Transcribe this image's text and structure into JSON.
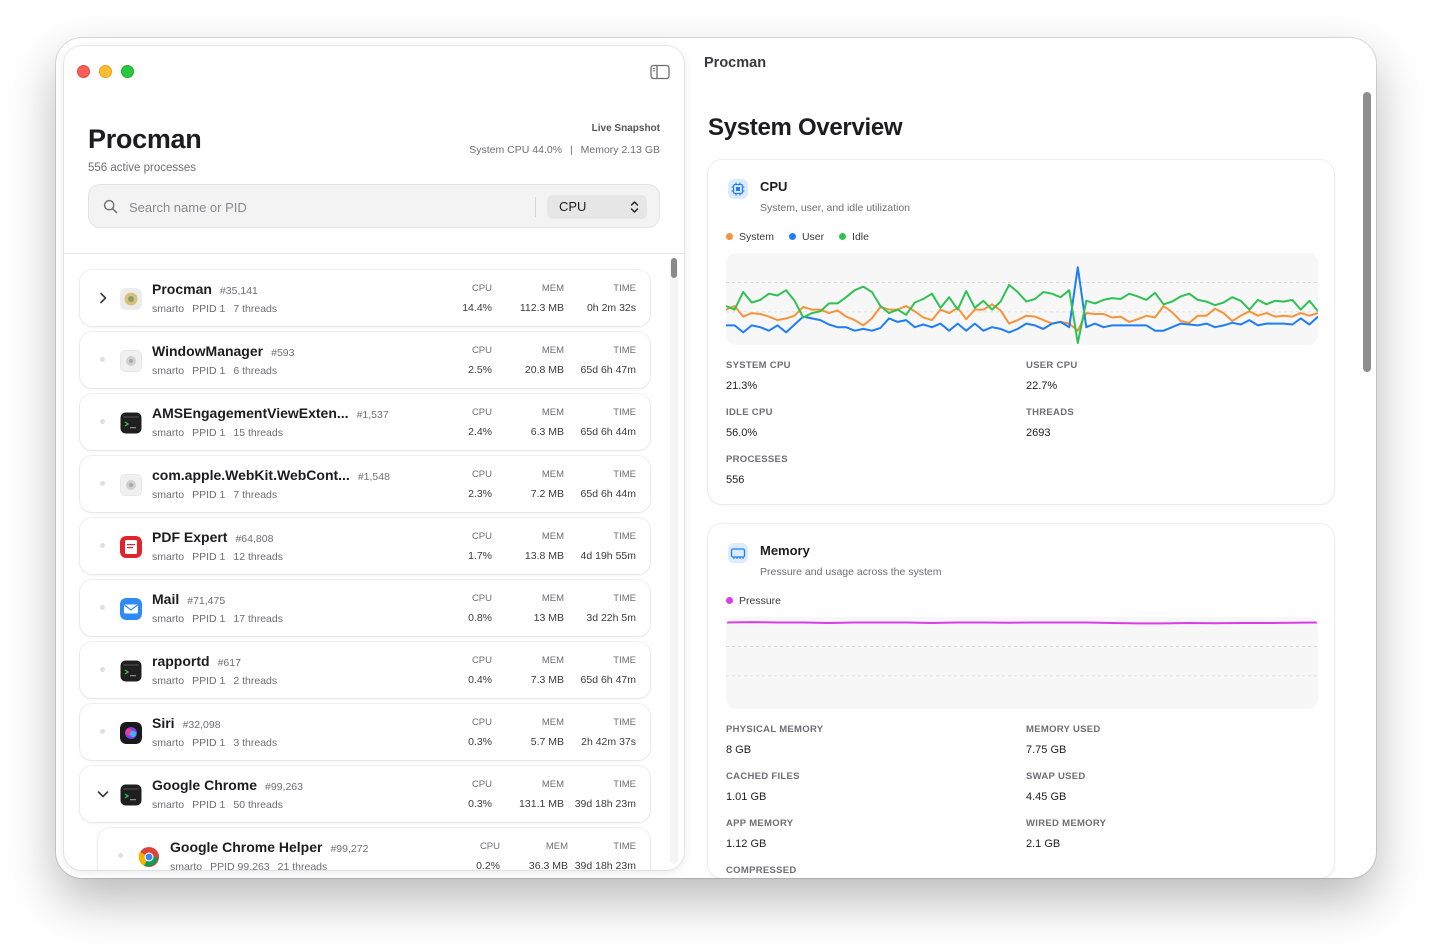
{
  "sidebar": {
    "app_title": "Procman",
    "active_count": "556 active processes",
    "snapshot_label": "Live Snapshot",
    "system_cpu": "System CPU 44.0%",
    "stat_separator": "|",
    "memory": "Memory 2.13 GB",
    "search_placeholder": "Search name or PID",
    "sort_value": "CPU",
    "column_labels": {
      "cpu": "CPU",
      "mem": "MEM",
      "time": "TIME"
    },
    "processes": [
      {
        "name": "Procman",
        "pid": "#35,141",
        "user": "smarto",
        "ppid": "PPID 1",
        "threads": "7 threads",
        "cpu": "14.4%",
        "mem": "112.3 MB",
        "time": "0h 2m 32s",
        "lead": "chevron-right",
        "icon": "procman"
      },
      {
        "name": "WindowManager",
        "pid": "#593",
        "user": "smarto",
        "ppid": "PPID 1",
        "threads": "6 threads",
        "cpu": "2.5%",
        "mem": "20.8 MB",
        "time": "65d 6h 47m",
        "lead": "dot",
        "icon": "generic"
      },
      {
        "name": "AMSEngagementViewExten...",
        "pid": "#1,537",
        "user": "smarto",
        "ppid": "PPID 1",
        "threads": "15 threads",
        "cpu": "2.4%",
        "mem": "6.3 MB",
        "time": "65d 6h 44m",
        "lead": "dot",
        "icon": "exec"
      },
      {
        "name": "com.apple.WebKit.WebCont...",
        "pid": "#1,548",
        "user": "smarto",
        "ppid": "PPID 1",
        "threads": "7 threads",
        "cpu": "2.3%",
        "mem": "7.2 MB",
        "time": "65d 6h 44m",
        "lead": "dot",
        "icon": "generic"
      },
      {
        "name": "PDF Expert",
        "pid": "#64,808",
        "user": "smarto",
        "ppid": "PPID 1",
        "threads": "12 threads",
        "cpu": "1.7%",
        "mem": "13.8 MB",
        "time": "4d 19h 55m",
        "lead": "dot",
        "icon": "pdf"
      },
      {
        "name": "Mail",
        "pid": "#71,475",
        "user": "smarto",
        "ppid": "PPID 1",
        "threads": "17 threads",
        "cpu": "0.8%",
        "mem": "13 MB",
        "time": "3d 22h 5m",
        "lead": "dot",
        "icon": "mail"
      },
      {
        "name": "rapportd",
        "pid": "#617",
        "user": "smarto",
        "ppid": "PPID 1",
        "threads": "2 threads",
        "cpu": "0.4%",
        "mem": "7.3 MB",
        "time": "65d 6h 47m",
        "lead": "dot",
        "icon": "exec"
      },
      {
        "name": "Siri",
        "pid": "#32,098",
        "user": "smarto",
        "ppid": "PPID 1",
        "threads": "3 threads",
        "cpu": "0.3%",
        "mem": "5.7 MB",
        "time": "2h 42m 37s",
        "lead": "dot",
        "icon": "siri"
      },
      {
        "name": "Google Chrome",
        "pid": "#99,263",
        "user": "smarto",
        "ppid": "PPID 1",
        "threads": "50 threads",
        "cpu": "0.3%",
        "mem": "131.1 MB",
        "time": "39d 18h 23m",
        "lead": "chevron-down",
        "icon": "exec"
      },
      {
        "name": "Google Chrome Helper",
        "pid": "#99,272",
        "user": "smarto",
        "ppid": "PPID 99,263",
        "threads": "21 threads",
        "cpu": "0.2%",
        "mem": "36.3 MB",
        "time": "39d 18h 23m",
        "lead": "dot",
        "icon": "chrome",
        "child": true
      }
    ]
  },
  "main": {
    "window_title": "Procman",
    "overview_title": "System Overview",
    "cpu_card": {
      "title": "CPU",
      "subtitle": "System, user, and idle utilization",
      "legend": [
        {
          "name": "System",
          "color": "#f5943a"
        },
        {
          "name": "User",
          "color": "#1f7ef5"
        },
        {
          "name": "Idle",
          "color": "#2fc253"
        }
      ],
      "stats": [
        {
          "label": "SYSTEM CPU",
          "value": "21.3%"
        },
        {
          "label": "USER CPU",
          "value": "22.7%"
        },
        {
          "label": "IDLE CPU",
          "value": "56.0%"
        },
        {
          "label": "THREADS",
          "value": "2693"
        },
        {
          "label": "PROCESSES",
          "value": "556"
        }
      ]
    },
    "memory_card": {
      "title": "Memory",
      "subtitle": "Pressure and usage across the system",
      "legend": [
        {
          "name": "Pressure",
          "color": "#d93ee6"
        }
      ],
      "stats": [
        {
          "label": "PHYSICAL MEMORY",
          "value": "8 GB"
        },
        {
          "label": "MEMORY USED",
          "value": "7.75 GB"
        },
        {
          "label": "CACHED FILES",
          "value": "1.01 GB"
        },
        {
          "label": "SWAP USED",
          "value": "4.45 GB"
        },
        {
          "label": "APP MEMORY",
          "value": "1.12 GB"
        },
        {
          "label": "WIRED MEMORY",
          "value": "2.1 GB"
        },
        {
          "label": "COMPRESSED",
          "value": ""
        }
      ]
    }
  },
  "chart_data": [
    {
      "type": "line",
      "ylim": [
        0,
        100
      ],
      "grid": true,
      "legend": "top-left",
      "series": [
        {
          "name": "System",
          "values": [
            38,
            42,
            30,
            34,
            33,
            30,
            26,
            28,
            31,
            41,
            38,
            38,
            34,
            37,
            30,
            26,
            20,
            28,
            41,
            38,
            38,
            42,
            36,
            29,
            26,
            38,
            34,
            40,
            27,
            38,
            38,
            44,
            37,
            22,
            26,
            31,
            30,
            26,
            22,
            24,
            22,
            14,
            34,
            33,
            33,
            29,
            30,
            24,
            27,
            31,
            29,
            42,
            35,
            25,
            23,
            31,
            31,
            39,
            34,
            25,
            31,
            36,
            31,
            34,
            30,
            31,
            30,
            34,
            31,
            34
          ]
        },
        {
          "name": "User",
          "values": [
            20,
            20,
            12,
            20,
            18,
            14,
            20,
            12,
            21,
            30,
            28,
            26,
            21,
            18,
            18,
            14,
            16,
            14,
            17,
            28,
            24,
            26,
            18,
            21,
            18,
            22,
            14,
            22,
            14,
            22,
            14,
            18,
            16,
            12,
            16,
            22,
            20,
            16,
            22,
            24,
            18,
            86,
            18,
            22,
            18,
            20,
            20,
            20,
            20,
            20,
            14,
            14,
            18,
            22,
            21,
            20,
            22,
            18,
            20,
            23,
            21,
            26,
            20,
            22,
            22,
            22,
            21,
            28,
            21,
            30
          ]
        },
        {
          "name": "Idle",
          "values": [
            42,
            38,
            58,
            46,
            49,
            56,
            54,
            60,
            48,
            29,
            34,
            36,
            45,
            45,
            52,
            60,
            64,
            58,
            42,
            34,
            38,
            32,
            46,
            50,
            56,
            40,
            52,
            38,
            59,
            40,
            48,
            38,
            47,
            66,
            58,
            47,
            50,
            58,
            56,
            52,
            60,
            0,
            48,
            45,
            49,
            51,
            50,
            56,
            53,
            49,
            57,
            44,
            47,
            53,
            56,
            49,
            47,
            43,
            46,
            52,
            48,
            38,
            49,
            44,
            48,
            47,
            49,
            38,
            48,
            36
          ]
        }
      ]
    },
    {
      "type": "line",
      "ylim": [
        0,
        100
      ],
      "grid": true,
      "legend": "top-left",
      "series": [
        {
          "name": "Pressure",
          "values": [
            96,
            96.5,
            96,
            96,
            95.5,
            96,
            96,
            96,
            95.5,
            96,
            96,
            95.8,
            96,
            96,
            96,
            95.5,
            95,
            95,
            95.5,
            95.2,
            95.5,
            95.5,
            95.8,
            96
          ]
        }
      ]
    }
  ]
}
